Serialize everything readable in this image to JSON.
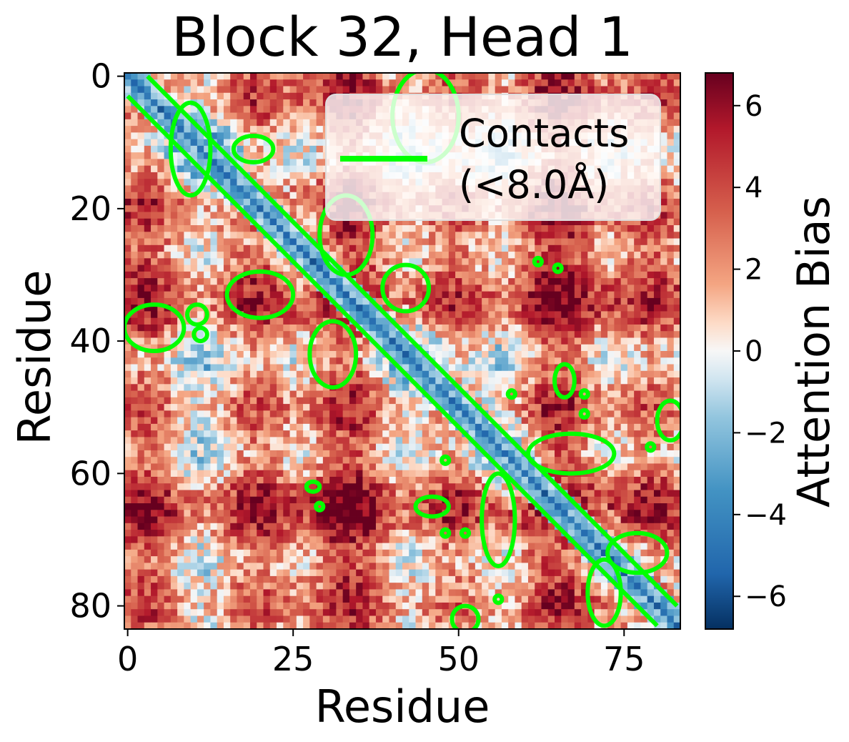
{
  "chart_data": {
    "type": "heatmap",
    "title": "Block 32, Head 1",
    "xlabel": "Residue",
    "ylabel": "Residue",
    "n_residues": 84,
    "x_ticks": [
      0,
      25,
      50,
      75
    ],
    "y_ticks": [
      0,
      20,
      40,
      60,
      80
    ],
    "colorbar": {
      "label": "Attention Bias",
      "colormap": "RdBu_r",
      "range": [
        -6.8,
        6.8
      ],
      "ticks": [
        6,
        4,
        2,
        0,
        -2,
        -4,
        -6
      ],
      "tick_labels": [
        "6",
        "4",
        "2",
        "0",
        "−2",
        "−4",
        "−6"
      ]
    },
    "legend": {
      "position": "top-right",
      "entries": [
        {
          "label_line1": "Contacts",
          "label_line2": "(<8.0Å)",
          "color": "#00ff00"
        }
      ]
    },
    "contact_color": "#00ff00",
    "contact_regions": [
      {
        "kind": "diagonal-band",
        "from": 0,
        "to": 83,
        "half_width": 3
      },
      {
        "kind": "blob",
        "x": 9.5,
        "y": 11,
        "w": 6,
        "h": 14
      },
      {
        "kind": "blob",
        "x": 19,
        "y": 11,
        "w": 6,
        "h": 4
      },
      {
        "kind": "blob",
        "x": 33,
        "y": 24,
        "w": 8,
        "h": 12
      },
      {
        "kind": "blob",
        "x": 20,
        "y": 33,
        "w": 10,
        "h": 7
      },
      {
        "kind": "blob",
        "x": 45,
        "y": 6,
        "w": 10,
        "h": 14
      },
      {
        "kind": "blob",
        "x": 42,
        "y": 32,
        "w": 7,
        "h": 7
      },
      {
        "kind": "blob",
        "x": 31,
        "y": 42,
        "w": 7,
        "h": 10
      },
      {
        "kind": "blob",
        "x": 4,
        "y": 38,
        "w": 9,
        "h": 7
      },
      {
        "kind": "blob",
        "x": 10.5,
        "y": 36,
        "w": 3,
        "h": 3
      },
      {
        "kind": "blob",
        "x": 11,
        "y": 39,
        "w": 2,
        "h": 2
      },
      {
        "kind": "blob",
        "x": 67,
        "y": 57,
        "w": 13,
        "h": 6
      },
      {
        "kind": "blob",
        "x": 56,
        "y": 67,
        "w": 5,
        "h": 14
      },
      {
        "kind": "blob",
        "x": 77,
        "y": 72,
        "w": 9,
        "h": 6
      },
      {
        "kind": "blob",
        "x": 72,
        "y": 78,
        "w": 5,
        "h": 10
      },
      {
        "kind": "blob",
        "x": 66,
        "y": 46,
        "w": 3,
        "h": 5
      },
      {
        "kind": "blob",
        "x": 82,
        "y": 52,
        "w": 4,
        "h": 6
      },
      {
        "kind": "blob",
        "x": 46,
        "y": 65,
        "w": 5,
        "h": 3
      },
      {
        "kind": "blob",
        "x": 51,
        "y": 82,
        "w": 4,
        "h": 4
      },
      {
        "kind": "blob",
        "x": 28,
        "y": 62,
        "w": 2,
        "h": 1.5
      },
      {
        "kind": "dot",
        "x": 62,
        "y": 28
      },
      {
        "kind": "dot",
        "x": 65,
        "y": 29
      },
      {
        "kind": "dot",
        "x": 29,
        "y": 65
      },
      {
        "kind": "dot",
        "x": 58,
        "y": 48
      },
      {
        "kind": "dot",
        "x": 48,
        "y": 58
      },
      {
        "kind": "dot",
        "x": 69,
        "y": 48
      },
      {
        "kind": "dot",
        "x": 69,
        "y": 51
      },
      {
        "kind": "dot",
        "x": 79,
        "y": 56
      },
      {
        "kind": "dot",
        "x": 48,
        "y": 69
      },
      {
        "kind": "dot",
        "x": 51,
        "y": 69
      },
      {
        "kind": "dot",
        "x": 56,
        "y": 79
      }
    ]
  }
}
